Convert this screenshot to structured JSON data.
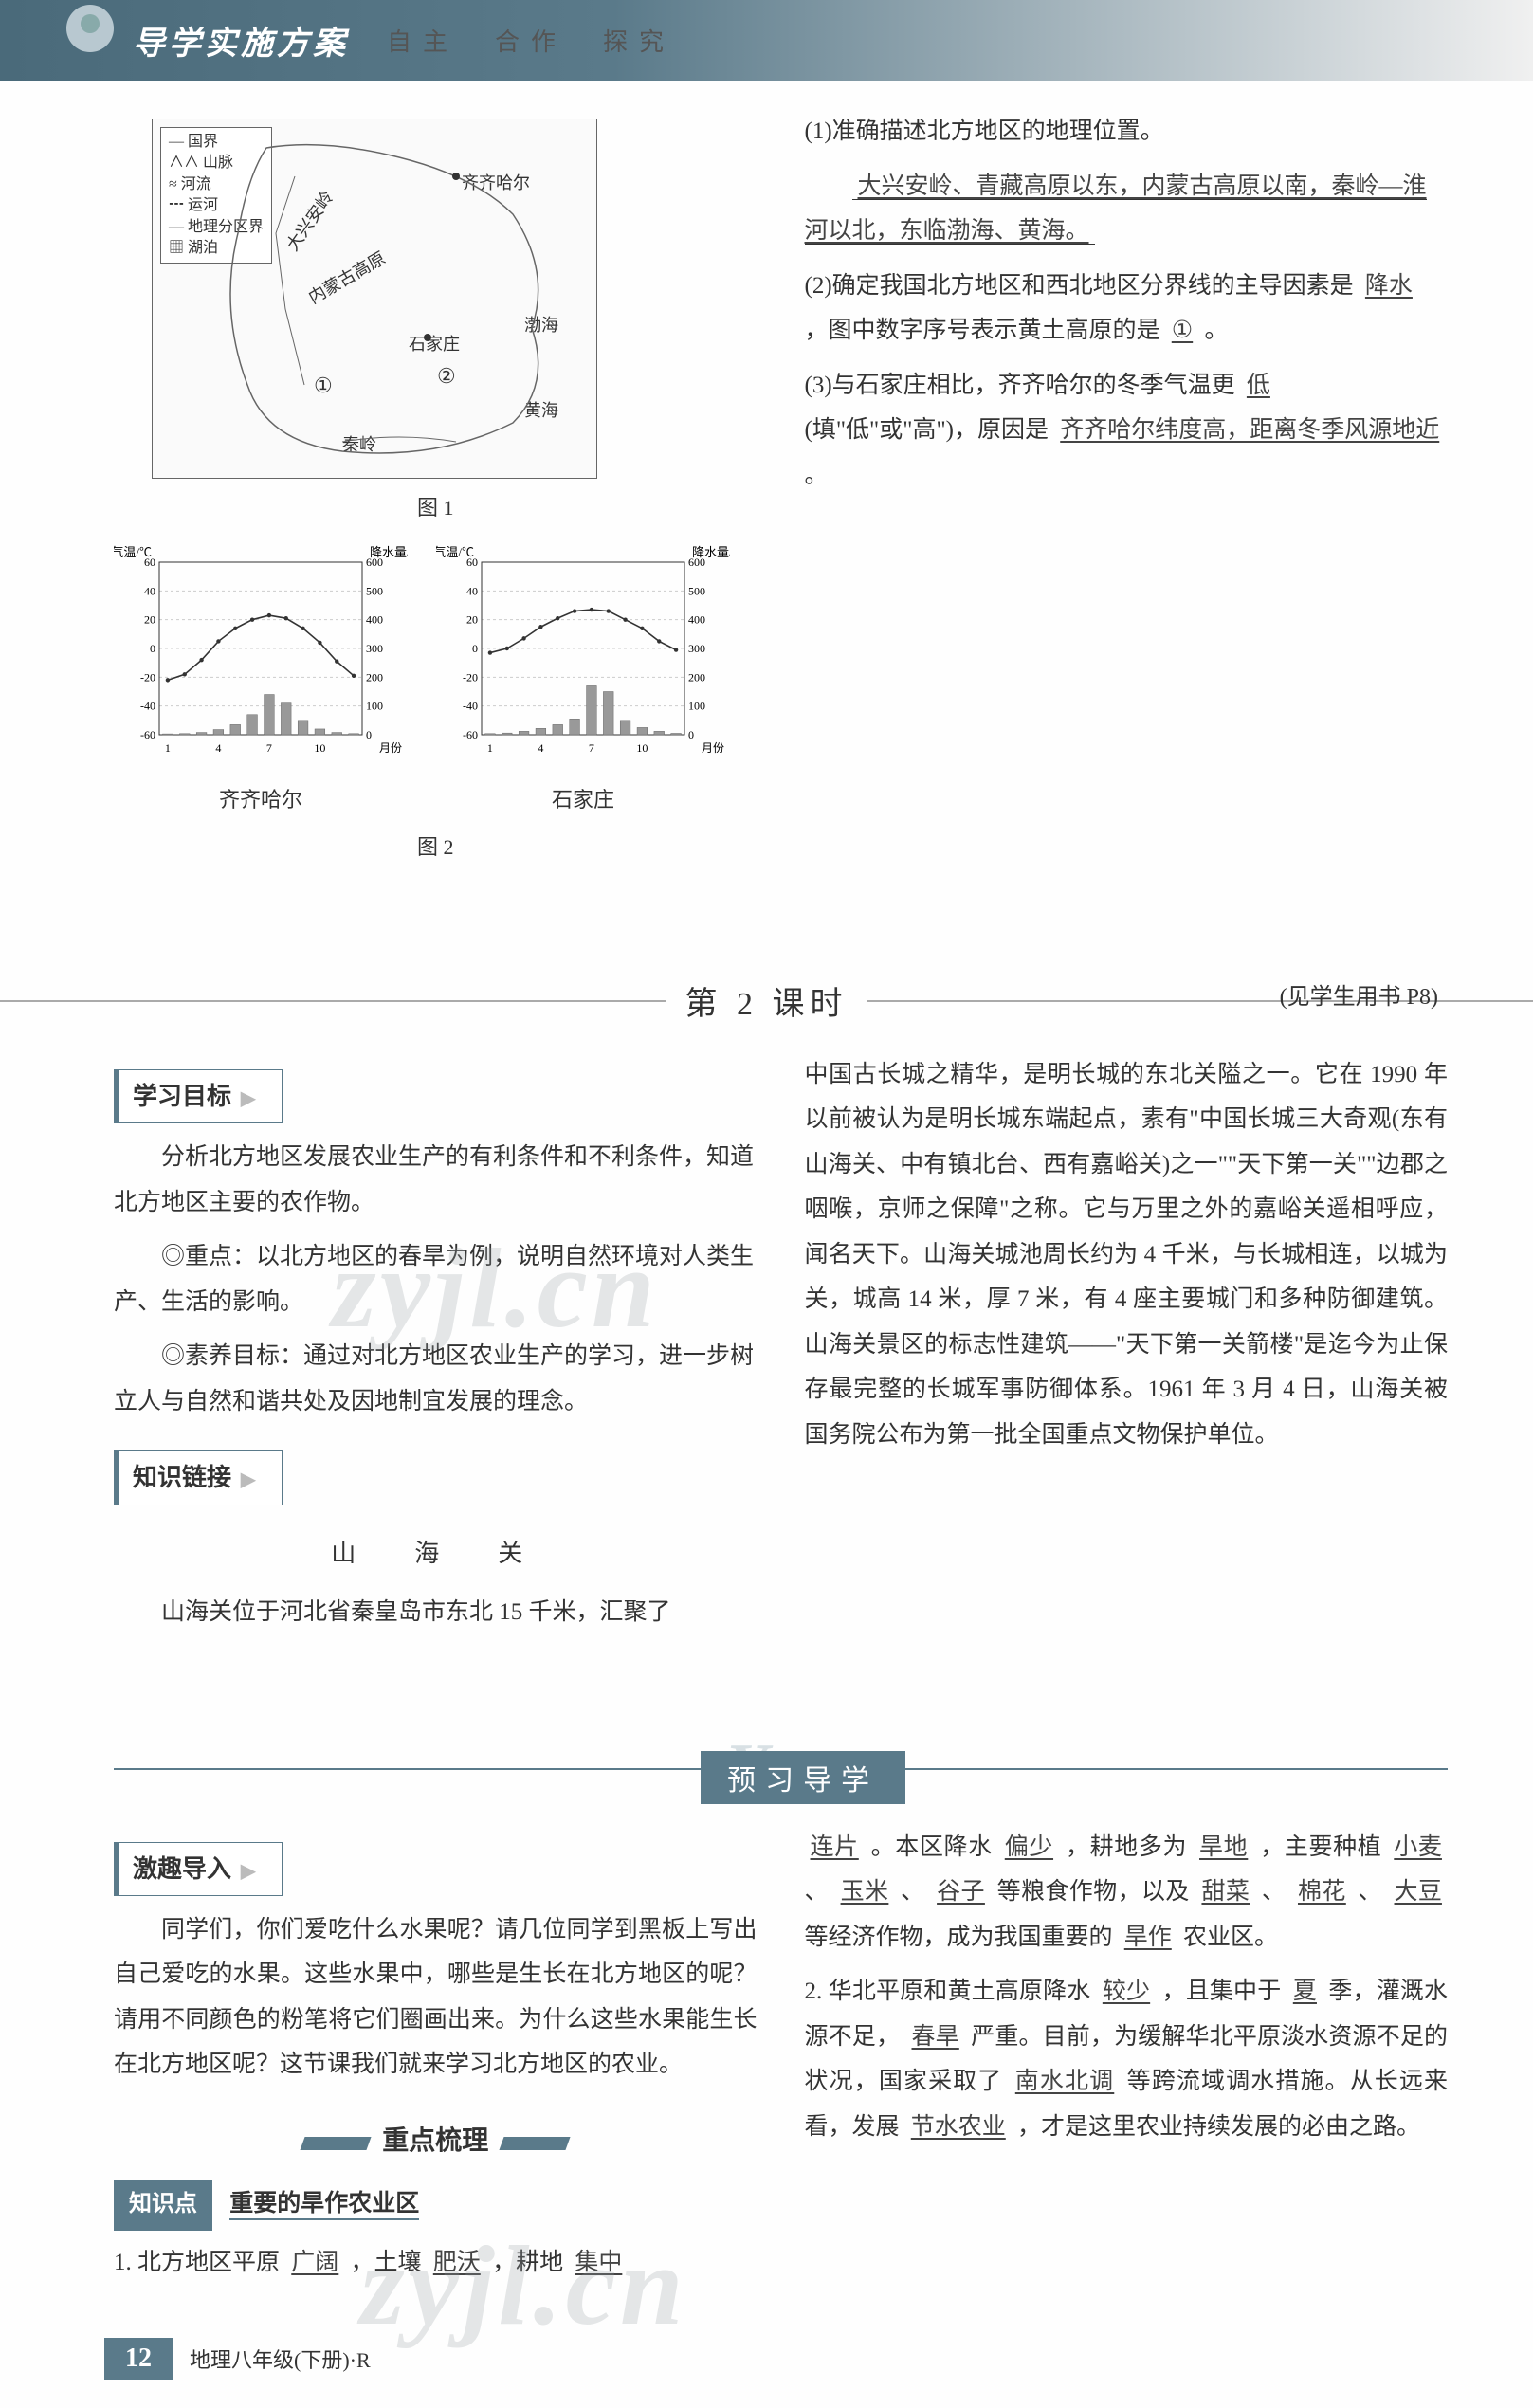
{
  "header": {
    "title": "导学实施方案",
    "subtitle": "自主　合作　探究"
  },
  "map": {
    "legend": [
      "— 国界",
      "∧∧ 山脉",
      "≈ 河流",
      "┅ 运河",
      "— 地理分区界",
      "▦ 湖泊"
    ],
    "labels": {
      "qiqihar": "齐齐哈尔",
      "shijiazhuang": "石家庄",
      "huanghai": "黄海",
      "bohai": "渤海",
      "daxing": "大兴安岭",
      "neimenggu": "内蒙古高原",
      "qinling": "秦岭",
      "num1": "①",
      "num2": "②"
    },
    "caption": "图 1"
  },
  "charts": {
    "left_axis_label": "气温/℃",
    "right_axis_label": "降水量/毫米",
    "x_label": "月份",
    "temp_ticks": [
      60,
      40,
      20,
      0,
      -20,
      -40,
      -60
    ],
    "precip_ticks": [
      600,
      500,
      400,
      300,
      200,
      100,
      0
    ],
    "x_ticks": [
      1,
      4,
      7,
      10
    ],
    "caption": "图 2",
    "cities": {
      "qqhr": {
        "name": "齐齐哈尔",
        "temp": [
          -22,
          -18,
          -8,
          5,
          14,
          20,
          23,
          21,
          14,
          4,
          -9,
          -19
        ],
        "precip": [
          3,
          4,
          8,
          18,
          35,
          70,
          140,
          110,
          50,
          20,
          8,
          4
        ],
        "line_color": "#333",
        "bar_color": "#999"
      },
      "sjz": {
        "name": "石家庄",
        "temp": [
          -3,
          0,
          7,
          15,
          21,
          26,
          27,
          26,
          20,
          14,
          5,
          -1
        ],
        "precip": [
          4,
          6,
          12,
          22,
          35,
          55,
          170,
          150,
          50,
          25,
          12,
          5
        ],
        "line_color": "#333",
        "bar_color": "#999"
      }
    },
    "temp_range": [
      -60,
      60
    ],
    "precip_range": [
      0,
      600
    ]
  },
  "questions": {
    "q1": {
      "prompt": "(1)准确描述北方地区的地理位置。",
      "answer": "大兴安岭、青藏高原以东，内蒙古高原以南，秦岭—淮河以北，东临渤海、黄海。"
    },
    "q2": {
      "prefix": "(2)确定我国北方地区和西北地区分界线的主导因素是",
      "blank1": "降水",
      "mid": "，图中数字序号表示黄土高原的是",
      "blank2": "①",
      "suffix": "。"
    },
    "q3": {
      "prefix": "(3)与石家庄相比，齐齐哈尔的冬季气温更",
      "blank1": "低",
      "mid": "(填\"低\"或\"高\")，原因是",
      "blank2": "齐齐哈尔纬度高，距离冬季风源地近",
      "suffix": "。"
    }
  },
  "lesson": {
    "title": "第 2 课时",
    "page_ref": "(见学生用书 P8)"
  },
  "objectives": {
    "heading": "学习目标",
    "p1": "分析北方地区发展农业生产的有利条件和不利条件，知道北方地区主要的农作物。",
    "p2": "◎重点：以北方地区的春旱为例，说明自然环境对人类生产、生活的影响。",
    "p3": "◎素养目标：通过对北方地区农业生产的学习，进一步树立人与自然和谐共处及因地制宜发展的理念。"
  },
  "link": {
    "heading": "知识链接",
    "title": "山　海　关",
    "p_left": "山海关位于河北省秦皇岛市东北 15 千米，汇聚了",
    "p_right": "中国古长城之精华，是明长城的东北关隘之一。它在 1990 年以前被认为是明长城东端起点，素有\"中国长城三大奇观(东有山海关、中有镇北台、西有嘉峪关)之一\"\"天下第一关\"\"边郡之咽喉，京师之保障\"之称。它与万里之外的嘉峪关遥相呼应，闻名天下。山海关城池周长约为 4 千米，与长城相连，以城为关，城高 14 米，厚 7 米，有 4 座主要城门和多种防御建筑。山海关景区的标志性建筑——\"天下第一关箭楼\"是迄今为止保存最完整的长城军事防御体系。1961 年 3 月 4 日，山海关被国务院公布为第一批全国重点文物保护单位。"
  },
  "preview": {
    "banner": "预习导学",
    "lead_heading": "激趣导入",
    "lead_text": "同学们，你们爱吃什么水果呢？请几位同学到黑板上写出自己爱吃的水果。这些水果中，哪些是生长在北方地区的呢？请用不同颜色的粉笔将它们圈画出来。为什么这些水果能生长在北方地区呢？这节课我们就来学习北方地区的农业。",
    "key_band": "重点梳理",
    "kpoint_tag": "知识点",
    "kpoint_text": "重要的旱作农业区",
    "item1": {
      "prefix": "1. 北方地区平原",
      "b1": "广阔",
      "t1": "，土壤",
      "b2": "肥沃",
      "t2": "，耕地",
      "b3": "集中"
    },
    "right": {
      "r1a": "连片",
      "r1b": "。本区降水",
      "r1c": "偏少",
      "r1d": "，耕地多为",
      "r1e": "旱地",
      "r1f": "，主要种植",
      "r1g": "小麦",
      "r1h": "、",
      "r1i": "玉米",
      "r1j": "、",
      "r1k": "谷子",
      "r1l": "等粮食作物，以及",
      "r1m": "甜菜",
      "r1n": "、",
      "r1o": "棉花",
      "r1p": "、",
      "r1q": "大豆",
      "r1r": "等经济作物，成为我国重要的",
      "r1s": "旱作",
      "r1t": "农业区。",
      "r2a": "2. 华北平原和黄土高原降水",
      "r2b": "较少",
      "r2c": "，且集中于",
      "r2d": "夏",
      "r2e": "季，灌溉水源不足，",
      "r2f": "春旱",
      "r2g": "严重。目前，为缓解华北平原淡水资源不足的状况，国家采取了",
      "r2h": "南水北调",
      "r2i": "等跨流域调水措施。从长远来看，发展",
      "r2j": "节水农业",
      "r2k": "，才是这里农业持续发展的必由之路。"
    }
  },
  "footer": {
    "page": "12",
    "text": "地理八年级(下册)·R"
  },
  "watermarks": {
    "w1": "zyjl.cn",
    "w2": "zyjl.cn"
  }
}
